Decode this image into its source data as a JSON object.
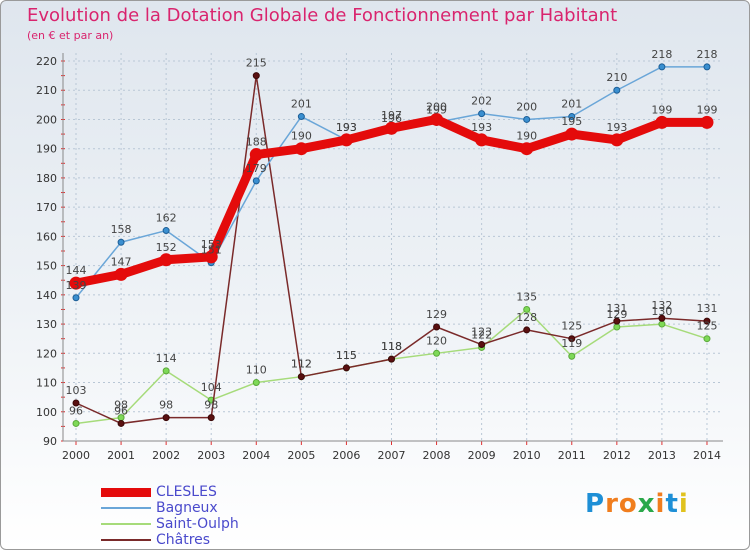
{
  "title": "Evolution de la Dotation Globale de Fonctionnement par Habitant",
  "subtitle": "(en € et par an)",
  "logo": {
    "letters": [
      "P",
      "r",
      "o",
      "x",
      "i",
      "t",
      "i"
    ],
    "colors": [
      "#1e8fd6",
      "#f07d1e",
      "#f07d1e",
      "#2aa84a",
      "#f07d1e",
      "#1e8fd6",
      "#e0c21e"
    ]
  },
  "chart_data": {
    "type": "line",
    "x": [
      "2000",
      "2001",
      "2002",
      "2003",
      "2004",
      "2005",
      "2006",
      "2007",
      "2008",
      "2009",
      "2010",
      "2011",
      "2012",
      "2013",
      "2014"
    ],
    "ylim": [
      90,
      220
    ],
    "yticks": [
      90,
      100,
      110,
      120,
      130,
      140,
      150,
      160,
      170,
      180,
      190,
      200,
      210,
      220
    ],
    "grid": true,
    "legend_position": "bottom-left",
    "series": [
      {
        "name": "CLESLES",
        "color": "#e40b0b",
        "values": [
          144,
          147,
          152,
          153,
          188,
          190,
          193,
          197,
          200,
          193,
          190,
          195,
          193,
          199,
          199
        ]
      },
      {
        "name": "Bagneux",
        "color": "#6aa6d8",
        "values": [
          139,
          158,
          162,
          151,
          179,
          201,
          193,
          196,
          199,
          202,
          200,
          201,
          210,
          218,
          218
        ]
      },
      {
        "name": "Saint-Oulph",
        "color": "#a6db7a",
        "values": [
          96,
          98,
          114,
          104,
          110,
          112,
          115,
          118,
          120,
          122,
          135,
          119,
          129,
          130,
          125
        ]
      },
      {
        "name": "Châtres",
        "color": "#7a2a2a",
        "values": [
          103,
          96,
          98,
          98,
          215,
          112,
          115,
          118,
          129,
          123,
          128,
          125,
          131,
          132,
          131
        ]
      }
    ]
  }
}
